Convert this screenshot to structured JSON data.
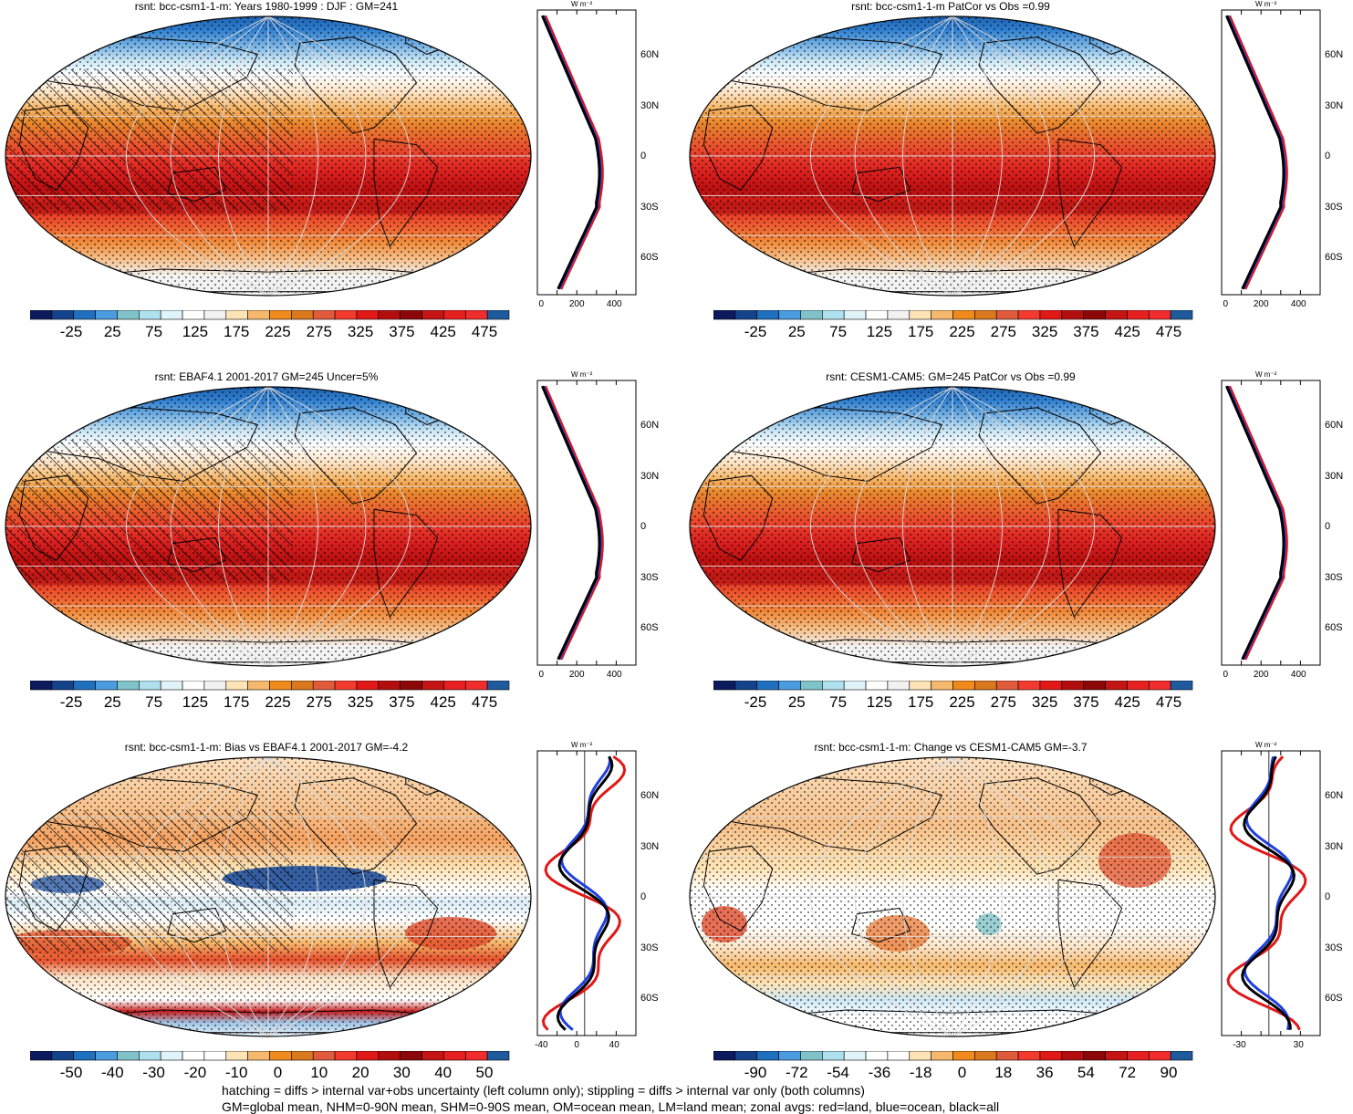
{
  "panels": [
    {
      "title": "rsnt: bcc-csm1-1-m: Years 1980-1999 : DJF : GM=241",
      "palette": "abs",
      "ticks": [
        "-25",
        "25",
        "75",
        "125",
        "175",
        "225",
        "275",
        "325",
        "375",
        "425",
        "475"
      ],
      "zonal_ticks": [
        "0",
        "200",
        "400"
      ],
      "hatch": true,
      "kind": "abs"
    },
    {
      "title": "rsnt: bcc-csm1-1-m PatCor vs Obs =0.99",
      "palette": "abs",
      "ticks": [
        "-25",
        "25",
        "75",
        "125",
        "175",
        "225",
        "275",
        "325",
        "375",
        "425",
        "475"
      ],
      "zonal_ticks": [
        "0",
        "200",
        "400"
      ],
      "hatch": false,
      "kind": "abs"
    },
    {
      "title": "rsnt: EBAF4.1 2001-2017 GM=245 Uncer=5%",
      "palette": "abs",
      "ticks": [
        "-25",
        "25",
        "75",
        "125",
        "175",
        "225",
        "275",
        "325",
        "375",
        "425",
        "475"
      ],
      "zonal_ticks": [
        "0",
        "200",
        "400"
      ],
      "hatch": true,
      "kind": "abs"
    },
    {
      "title": "rsnt: CESM1-CAM5: GM=245 PatCor vs Obs =0.99",
      "palette": "abs",
      "ticks": [
        "-25",
        "25",
        "75",
        "125",
        "175",
        "225",
        "275",
        "325",
        "375",
        "425",
        "475"
      ],
      "zonal_ticks": [
        "0",
        "200",
        "400"
      ],
      "hatch": false,
      "kind": "abs"
    },
    {
      "title": "rsnt: bcc-csm1-1-m: Bias vs EBAF4.1 2001-2017 GM=-4.2",
      "palette": "diff",
      "ticks": [
        "-50",
        "-40",
        "-30",
        "-20",
        "-10",
        "0",
        "10",
        "20",
        "30",
        "40",
        "50"
      ],
      "zonal_ticks": [
        "-40",
        "0",
        "40"
      ],
      "hatch": true,
      "kind": "bias"
    },
    {
      "title": "rsnt: bcc-csm1-1-m: Change vs CESM1-CAM5 GM=-3.7",
      "palette": "diff",
      "ticks": [
        "-90",
        "-72",
        "-54",
        "-36",
        "-18",
        "0",
        "18",
        "36",
        "54",
        "72",
        "90"
      ],
      "zonal_ticks": [
        "-30",
        "30"
      ],
      "hatch": false,
      "kind": "change"
    }
  ],
  "lat_labels": [
    "60N",
    "30N",
    "0",
    "30S",
    "60S"
  ],
  "unit_label": "W m⁻²",
  "colors": {
    "abs": [
      "#0c1b5e",
      "#14438c",
      "#1f6fbf",
      "#4b9be0",
      "#7fc3c8",
      "#aee0ee",
      "#dff3f8",
      "#ffffff",
      "#f2f2f2",
      "#fde3b5",
      "#f6b86c",
      "#f08a1c",
      "#d9781c",
      "#e05a3c",
      "#f23a2e",
      "#e01818",
      "#b30e0e",
      "#8c0808",
      "#c41414",
      "#e62020",
      "#f02c2c",
      "#1e5a9c"
    ],
    "diff": [
      "#0c1b5e",
      "#14438c",
      "#1f6fbf",
      "#4b9be0",
      "#7fc3c8",
      "#aee0ee",
      "#dff3f8",
      "#ffffff",
      "#ffffff",
      "#fde3b5",
      "#f6b86c",
      "#f08a1c",
      "#d9781c",
      "#e05a3c",
      "#f23a2e",
      "#e01818",
      "#b30e0e",
      "#8c0808",
      "#c41414",
      "#e62020",
      "#f02c2c",
      "#1e5a9c"
    ]
  },
  "footer": {
    "line1": "hatching = diffs > internal var+obs uncertainty (left column only); stippling = diffs > internal var only (both columns)",
    "line2": "GM=global mean, NHM=0-90N mean, SHM=0-90S mean, OM=ocean mean, LM=land mean; zonal avgs: red=land, blue=ocean, black=all"
  }
}
